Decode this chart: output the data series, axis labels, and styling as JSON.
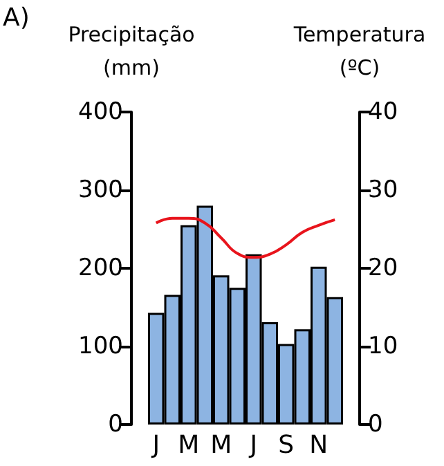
{
  "chart_data": {
    "type": "bar",
    "ylabel": "Precipitação (mm)",
    "y2label": "Temperatura (ºC)",
    "annotations": [
      "A)"
    ],
    "categories": [
      "J",
      null,
      "M",
      null,
      "M",
      null,
      "J",
      null,
      "S",
      null,
      "N",
      null
    ],
    "series": [
      {
        "color": "#8db4e2",
        "values": [
          143,
          166,
          255,
          280,
          191,
          175,
          218,
          131,
          103,
          122,
          202,
          163
        ]
      },
      {
        "type": "line",
        "axis": "y2",
        "color": "#e8141c",
        "values": [
          25.8,
          26.4,
          26.4,
          25.8,
          23.9,
          21.9,
          21.4,
          21.8,
          23,
          24.6,
          25.5,
          26.2
        ]
      }
    ],
    "ylim": [
      0,
      400
    ],
    "yticks": [
      0,
      100,
      200,
      300,
      400
    ],
    "y2lim": [
      0,
      40
    ],
    "y2ticks": [
      0,
      10,
      20,
      30,
      40
    ],
    "marker": "none",
    "line_style": "solid"
  }
}
